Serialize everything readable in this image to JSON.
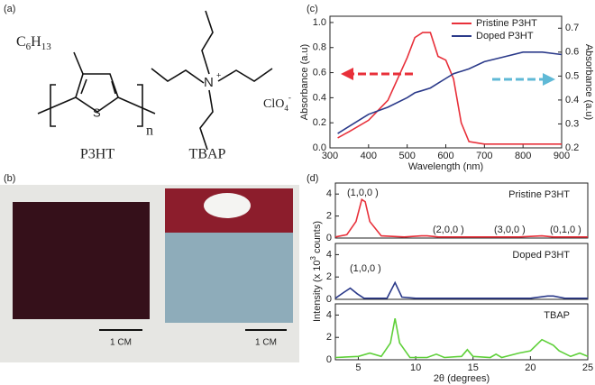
{
  "panel_labels": [
    "(a)",
    "(b)",
    "(c)",
    "(d)"
  ],
  "molecules": {
    "side_chain": [
      "C",
      "6",
      "H",
      "13"
    ],
    "sulfur": "S",
    "repeat": "n",
    "nitrogen": "N",
    "charge": "+",
    "counter_ion": [
      "ClO",
      "4",
      "-"
    ],
    "names": [
      "P3HT",
      "TBAP"
    ]
  },
  "photos": {
    "scale_bars": [
      "1 CM",
      "1 CM"
    ]
  },
  "chart_data": [
    {
      "type": "line",
      "xlabel": "Wavelength (nm)",
      "ylabel": "Absorbance (a.u)",
      "y2label": "Absorbance (a.u)",
      "x": [
        320,
        350,
        400,
        450,
        500,
        520,
        540,
        560,
        580,
        600,
        620,
        640,
        660,
        700,
        750,
        800,
        850,
        900
      ],
      "xlim": [
        300,
        900
      ],
      "xticks": [
        300,
        400,
        500,
        600,
        700,
        800,
        900
      ],
      "ylim": [
        0,
        1.05
      ],
      "yticks": [
        {
          "value": 0,
          "label": "0.0"
        },
        0.2,
        0.4,
        0.6,
        0.8,
        {
          "value": 1,
          "label": "1.0"
        }
      ],
      "y2lim": [
        0.2,
        0.75
      ],
      "y2ticks": [
        0.2,
        0.3,
        0.4,
        0.5,
        0.6,
        0.7
      ],
      "legend": "upper right",
      "series": [
        {
          "name": "Pristine P3HT",
          "color": "#e8303a",
          "values": [
            0.08,
            0.13,
            0.22,
            0.38,
            0.72,
            0.88,
            0.92,
            0.92,
            0.73,
            0.7,
            0.55,
            0.2,
            0.05,
            0.03,
            0.03,
            0.03,
            0.03,
            0.03
          ]
        },
        {
          "name": "Doped P3HT",
          "color": "#2b3a8a",
          "axis": "y2",
          "values": [
            0.26,
            0.29,
            0.34,
            0.37,
            0.41,
            0.43,
            0.44,
            0.45,
            0.47,
            0.49,
            0.51,
            0.52,
            0.53,
            0.56,
            0.58,
            0.6,
            0.6,
            0.59
          ]
        }
      ]
    },
    {
      "type": "line",
      "ylabel": [
        "Intensity (x 10",
        "3",
        " counts)"
      ],
      "x": [
        3,
        4,
        4.8,
        5.3,
        5.6,
        6,
        7,
        9,
        10.5,
        11,
        12,
        15,
        19,
        21,
        22,
        25
      ],
      "xlim": [
        3,
        25
      ],
      "ylim": [
        0,
        5
      ],
      "yticks": [
        0,
        2,
        4
      ],
      "annotations": [
        "(1,0,0 )",
        "(2,0,0 )",
        "(3,0,0 )",
        "(0,1,0 )"
      ],
      "series": [
        {
          "name": "Pristine P3HT",
          "color": "#e8303a",
          "values": [
            0.1,
            0.3,
            1.5,
            3.5,
            3.3,
            1.5,
            0.2,
            0.1,
            0.2,
            0.2,
            0.1,
            0.1,
            0.1,
            0.2,
            0.1,
            0.1
          ]
        }
      ]
    },
    {
      "type": "line",
      "x": [
        3,
        3.7,
        4.3,
        4.9,
        5.5,
        7.5,
        8.2,
        8.8,
        10,
        15,
        20,
        21.5,
        22,
        23,
        25
      ],
      "xlim": [
        3,
        25
      ],
      "ylim": [
        0,
        5
      ],
      "yticks": [
        0,
        2,
        4
      ],
      "annotations": [
        "(1,0,0 )"
      ],
      "series": [
        {
          "name": "Doped P3HT",
          "color": "#2b3a8a",
          "values": [
            0.1,
            0.6,
            1.0,
            0.5,
            0.1,
            0.1,
            1.5,
            0.2,
            0.1,
            0.1,
            0.1,
            0.3,
            0.3,
            0.1,
            0.1
          ]
        }
      ]
    },
    {
      "type": "line",
      "xlabel": "2θ (degrees)",
      "x": [
        3,
        5,
        6,
        7,
        7.8,
        8.2,
        8.6,
        9.5,
        11,
        11.8,
        12.5,
        14,
        14.5,
        15,
        16.5,
        17,
        17.5,
        19,
        20,
        21,
        22,
        22.5,
        23.5,
        24.3,
        25
      ],
      "xlim": [
        3,
        25
      ],
      "xticks": [
        5,
        10,
        15,
        20,
        25
      ],
      "ylim": [
        0,
        5
      ],
      "yticks": [
        0,
        2,
        4
      ],
      "series": [
        {
          "name": "TBAP",
          "color": "#5fd03a",
          "values": [
            0.2,
            0.3,
            0.6,
            0.3,
            1.5,
            3.7,
            1.5,
            0.2,
            0.2,
            0.5,
            0.2,
            0.3,
            0.9,
            0.3,
            0.2,
            0.5,
            0.2,
            0.6,
            0.8,
            1.8,
            1.3,
            0.8,
            0.3,
            0.6,
            0.3
          ]
        }
      ]
    }
  ]
}
